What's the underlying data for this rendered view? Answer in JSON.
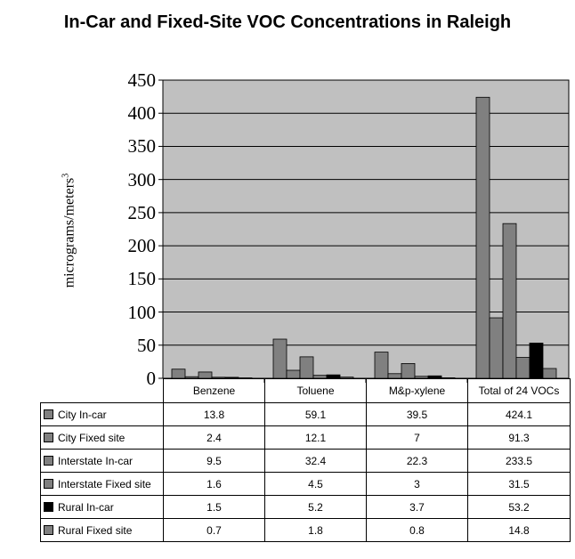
{
  "chart_data": {
    "type": "bar",
    "title": "In-Car and Fixed-Site VOC Concentrations in Raleigh",
    "ylabel": "micrograms/meters",
    "ylabel_superscript": "3",
    "xlabel": "",
    "ylim": [
      0,
      450
    ],
    "yticks": [
      0,
      50,
      100,
      150,
      200,
      250,
      300,
      350,
      400,
      450
    ],
    "grid": true,
    "legend_position": "table-rows",
    "categories": [
      "Benzene",
      "Toluene",
      "M&p-xylene",
      "Total of 24 VOCs"
    ],
    "series": [
      {
        "name": "City In-car",
        "color": "#808080",
        "values": [
          13.8,
          59.1,
          39.5,
          424.1
        ],
        "labels": [
          "13.8",
          "59.1",
          "39.5",
          "424.1"
        ]
      },
      {
        "name": "City Fixed site",
        "color": "#808080",
        "values": [
          2.4,
          12.1,
          7,
          91.3
        ],
        "labels": [
          "2.4",
          "12.1",
          "7",
          "91.3"
        ]
      },
      {
        "name": "Interstate In-car",
        "color": "#808080",
        "values": [
          9.5,
          32.4,
          22.3,
          233.5
        ],
        "labels": [
          "9.5",
          "32.4",
          "22.3",
          "233.5"
        ]
      },
      {
        "name": "Interstate Fixed site",
        "color": "#808080",
        "values": [
          1.6,
          4.5,
          3,
          31.5
        ],
        "labels": [
          "1.6",
          "4.5",
          "3",
          "31.5"
        ]
      },
      {
        "name": "Rural In-car",
        "color": "#000000",
        "values": [
          1.5,
          5.2,
          3.7,
          53.2
        ],
        "labels": [
          "1.5",
          "5.2",
          "3.7",
          "53.2"
        ]
      },
      {
        "name": "Rural Fixed site",
        "color": "#808080",
        "values": [
          0.7,
          1.8,
          0.8,
          14.8
        ],
        "labels": [
          "0.7",
          "1.8",
          "0.8",
          "14.8"
        ]
      }
    ]
  },
  "colors": {
    "plot_background": "#c0c0c0",
    "gridline": "#000000"
  }
}
